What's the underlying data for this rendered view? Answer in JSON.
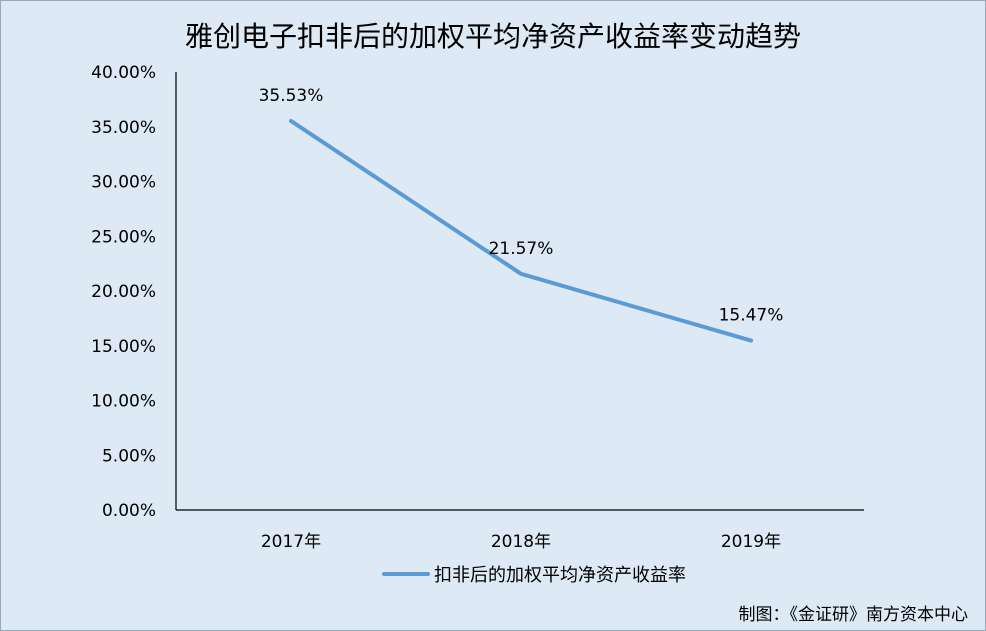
{
  "chart_data": {
    "type": "line",
    "title": "雅创电子扣非后的加权平均净资产收益率变动趋势",
    "categories": [
      "2017年",
      "2018年",
      "2019年"
    ],
    "series": [
      {
        "name": "扣非后的加权平均净资产收益率",
        "values": [
          35.53,
          21.57,
          15.47
        ],
        "labels": [
          "35.53%",
          "21.57%",
          "15.47%"
        ],
        "color": "#5b9bd5"
      }
    ],
    "ylim": [
      0,
      40
    ],
    "yticks": [
      "0.00%",
      "5.00%",
      "10.00%",
      "15.00%",
      "20.00%",
      "25.00%",
      "30.00%",
      "35.00%",
      "40.00%"
    ],
    "grid": false,
    "legend": "bottom"
  },
  "credit": "制图：《金证研》南方资本中心"
}
